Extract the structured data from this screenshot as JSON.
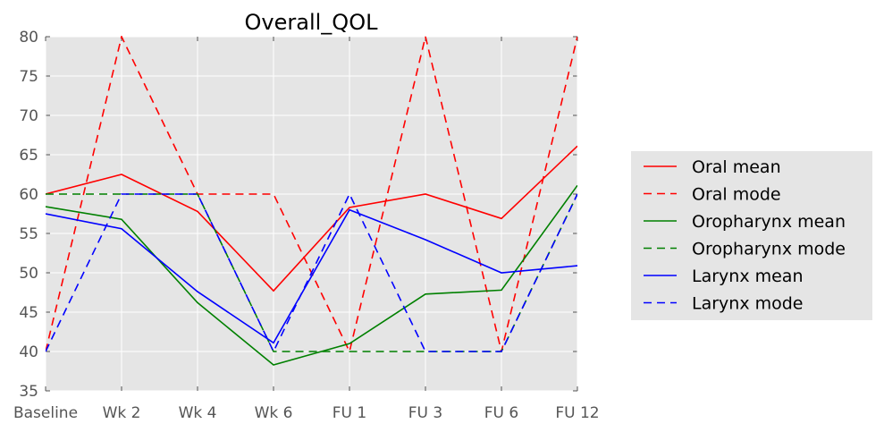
{
  "chart_data": {
    "type": "line",
    "title": "Overall_QOL",
    "xlabel": "",
    "ylabel": "",
    "categories": [
      "Baseline",
      "Wk 2",
      "Wk 4",
      "Wk 6",
      "FU 1",
      "FU 3",
      "FU 6",
      "FU 12"
    ],
    "ylim": [
      35,
      80
    ],
    "yticks": [
      35,
      40,
      45,
      50,
      55,
      60,
      65,
      70,
      75,
      80
    ],
    "grid": true,
    "legend_position": "right",
    "series": [
      {
        "name": "Oral mean",
        "color": "#ff0000",
        "dash": false,
        "values": [
          60.0,
          62.5,
          57.8,
          47.7,
          58.3,
          60.0,
          56.9,
          66.1
        ]
      },
      {
        "name": "Oral mode",
        "color": "#ff0000",
        "dash": true,
        "values": [
          40,
          80,
          60,
          60,
          40,
          80,
          40,
          80
        ]
      },
      {
        "name": "Oropharynx mean",
        "color": "#008000",
        "dash": false,
        "values": [
          58.4,
          56.8,
          46.2,
          38.3,
          41.0,
          47.3,
          47.8,
          61.1
        ]
      },
      {
        "name": "Oropharynx mode",
        "color": "#008000",
        "dash": true,
        "values": [
          60,
          60,
          60,
          40,
          40,
          40,
          40,
          60
        ]
      },
      {
        "name": "Larynx mean",
        "color": "#0000ff",
        "dash": false,
        "values": [
          57.5,
          55.6,
          47.6,
          41.1,
          58.0,
          54.2,
          50.0,
          50.9
        ]
      },
      {
        "name": "Larynx mode",
        "color": "#0000ff",
        "dash": true,
        "values": [
          40,
          60,
          60,
          40,
          60,
          40,
          40,
          60
        ]
      }
    ]
  }
}
